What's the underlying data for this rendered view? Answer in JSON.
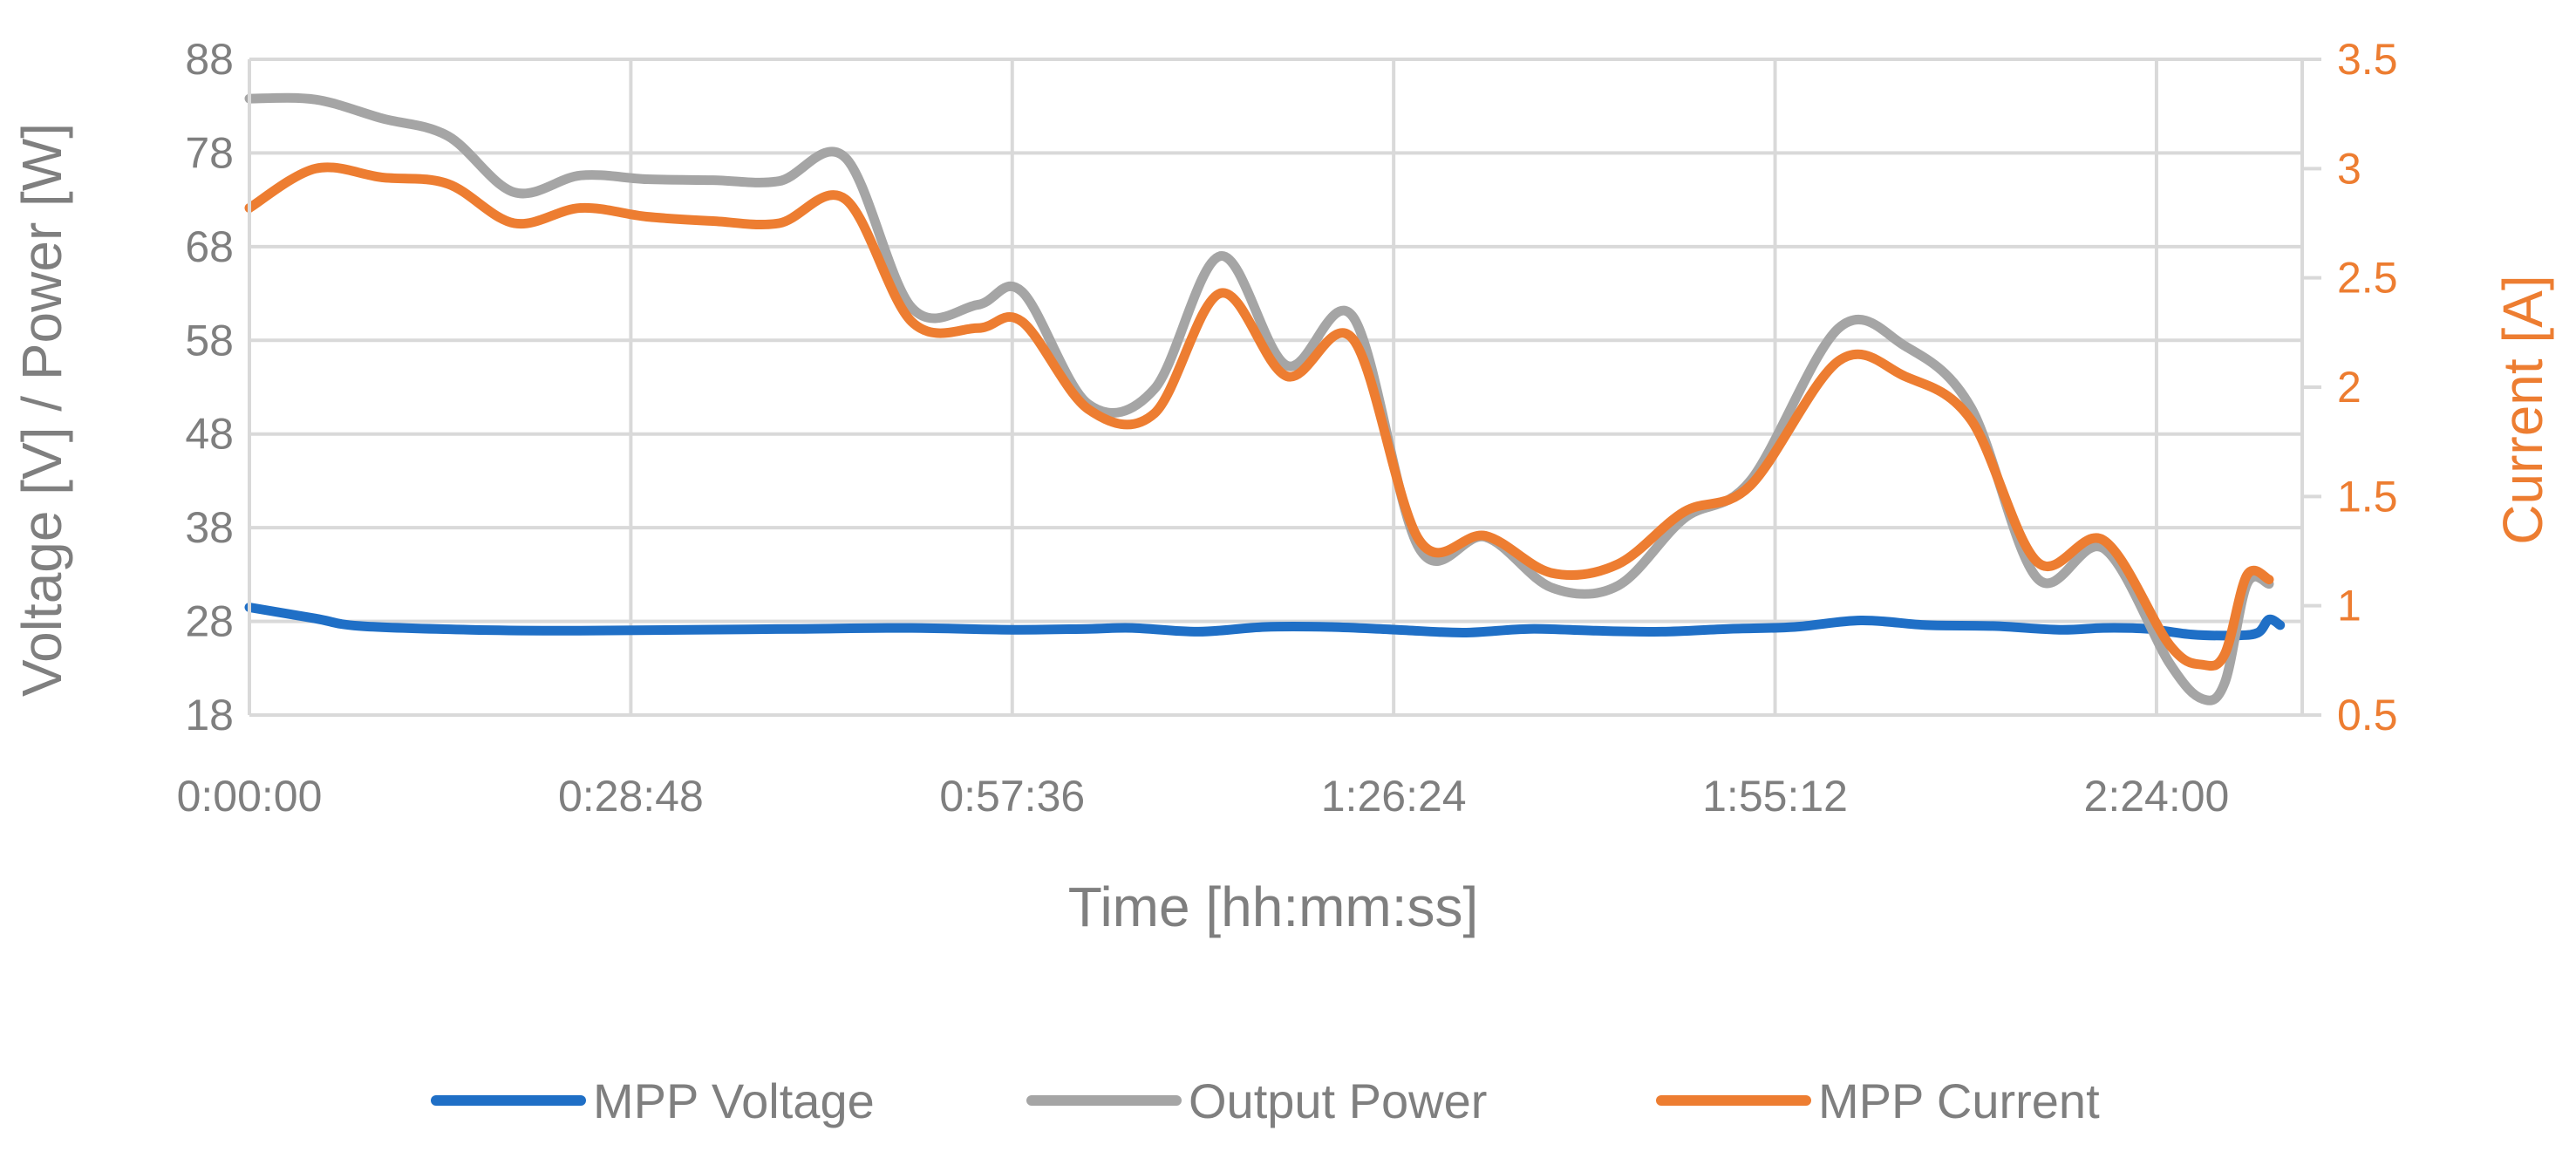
{
  "chart_data": {
    "type": "line",
    "xlabel": "Time [hh:mm:ss]",
    "ylabel_left": "Voltage [V] / Power [W]",
    "ylabel_right": "Current [A]",
    "x_unit": "seconds",
    "xlim": [
      0,
      9300
    ],
    "x_ticks": [
      0,
      1728,
      3456,
      5184,
      6912,
      8640
    ],
    "x_tick_labels": [
      "0:00:00",
      "0:28:48",
      "0:57:36",
      "1:26:24",
      "1:55:12",
      "2:24:00"
    ],
    "ylim_left": [
      18,
      88
    ],
    "y_ticks_left": [
      18,
      28,
      38,
      48,
      58,
      68,
      78,
      88
    ],
    "ylim_right": [
      0.5,
      3.5
    ],
    "y_ticks_right": [
      "0.5",
      "1",
      "1.5",
      "2",
      "2.5",
      "3",
      "3.5"
    ],
    "grid": true,
    "legend_position": "bottom",
    "series": [
      {
        "name": "MPP Voltage",
        "axis": "left",
        "color": "#1f6fc6",
        "points": [
          [
            0,
            29.5
          ],
          [
            300,
            28.3
          ],
          [
            500,
            27.5
          ],
          [
            1000,
            27.1
          ],
          [
            1500,
            27.0
          ],
          [
            2000,
            27.1
          ],
          [
            2500,
            27.2
          ],
          [
            3000,
            27.3
          ],
          [
            3456,
            27.1
          ],
          [
            3800,
            27.2
          ],
          [
            4000,
            27.3
          ],
          [
            4300,
            26.9
          ],
          [
            4600,
            27.4
          ],
          [
            4900,
            27.4
          ],
          [
            5200,
            27.1
          ],
          [
            5500,
            26.8
          ],
          [
            5800,
            27.2
          ],
          [
            6100,
            27.0
          ],
          [
            6400,
            26.9
          ],
          [
            6700,
            27.2
          ],
          [
            7000,
            27.4
          ],
          [
            7300,
            28.1
          ],
          [
            7600,
            27.6
          ],
          [
            7900,
            27.5
          ],
          [
            8200,
            27.1
          ],
          [
            8400,
            27.3
          ],
          [
            8600,
            27.2
          ],
          [
            8800,
            26.6
          ],
          [
            9000,
            26.5
          ],
          [
            9100,
            26.8
          ],
          [
            9150,
            28.2
          ],
          [
            9200,
            27.6
          ]
        ]
      },
      {
        "name": "Output Power",
        "axis": "left",
        "color": "#a5a5a5",
        "points": [
          [
            0,
            83.8
          ],
          [
            300,
            83.7
          ],
          [
            600,
            81.7
          ],
          [
            900,
            79.8
          ],
          [
            1200,
            73.8
          ],
          [
            1500,
            75.6
          ],
          [
            1800,
            75.2
          ],
          [
            2100,
            75.1
          ],
          [
            2400,
            75.0
          ],
          [
            2700,
            77.5
          ],
          [
            3000,
            61.5
          ],
          [
            3300,
            61.8
          ],
          [
            3500,
            63.2
          ],
          [
            3800,
            51.2
          ],
          [
            4100,
            52.8
          ],
          [
            4400,
            67.0
          ],
          [
            4700,
            55.3
          ],
          [
            5000,
            60.5
          ],
          [
            5300,
            35.8
          ],
          [
            5600,
            37.0
          ],
          [
            5900,
            31.6
          ],
          [
            6200,
            31.8
          ],
          [
            6500,
            39.0
          ],
          [
            6800,
            43.0
          ],
          [
            7200,
            59.3
          ],
          [
            7500,
            57.4
          ],
          [
            7800,
            50.8
          ],
          [
            8100,
            32.6
          ],
          [
            8400,
            35.8
          ],
          [
            8700,
            23.5
          ],
          [
            8850,
            19.7
          ],
          [
            8950,
            21.5
          ],
          [
            9050,
            32.0
          ],
          [
            9150,
            32.0
          ]
        ]
      },
      {
        "name": "MPP Current",
        "axis": "right",
        "color": "#ed7d31",
        "points": [
          [
            0,
            2.82
          ],
          [
            300,
            3.0
          ],
          [
            600,
            2.96
          ],
          [
            900,
            2.93
          ],
          [
            1200,
            2.75
          ],
          [
            1500,
            2.82
          ],
          [
            1800,
            2.78
          ],
          [
            2100,
            2.76
          ],
          [
            2400,
            2.75
          ],
          [
            2700,
            2.86
          ],
          [
            3000,
            2.3
          ],
          [
            3300,
            2.27
          ],
          [
            3500,
            2.3
          ],
          [
            3800,
            1.9
          ],
          [
            4100,
            1.88
          ],
          [
            4400,
            2.43
          ],
          [
            4700,
            2.05
          ],
          [
            5000,
            2.22
          ],
          [
            5300,
            1.3
          ],
          [
            5600,
            1.32
          ],
          [
            5900,
            1.15
          ],
          [
            6200,
            1.19
          ],
          [
            6500,
            1.43
          ],
          [
            6800,
            1.55
          ],
          [
            7200,
            2.12
          ],
          [
            7500,
            2.05
          ],
          [
            7800,
            1.85
          ],
          [
            8100,
            1.2
          ],
          [
            8400,
            1.3
          ],
          [
            8700,
            0.82
          ],
          [
            8850,
            0.73
          ],
          [
            8950,
            0.78
          ],
          [
            9050,
            1.14
          ],
          [
            9150,
            1.12
          ]
        ]
      }
    ]
  }
}
